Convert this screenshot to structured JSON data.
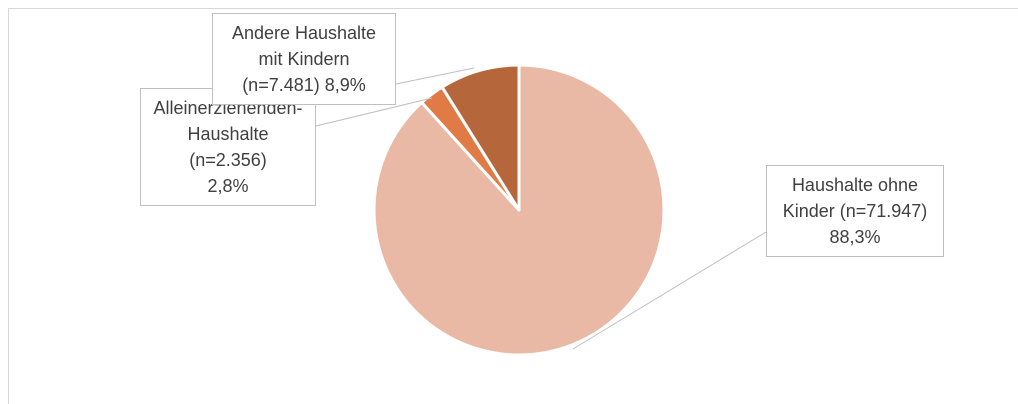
{
  "chart_data": {
    "type": "pie",
    "categories": [
      "Haushalte ohne Kinder (n=71.947)",
      "Alleinerziehenden-Haushalte (n=2.356)",
      "Andere Haushalte mit Kindern (n=7.481)"
    ],
    "values": [
      88.3,
      2.8,
      8.9
    ],
    "value_labels": [
      "88,3%",
      "2,8%",
      "8,9%"
    ],
    "colors": [
      "#e9b9a5",
      "#e07b46",
      "#b5663a"
    ]
  }
}
